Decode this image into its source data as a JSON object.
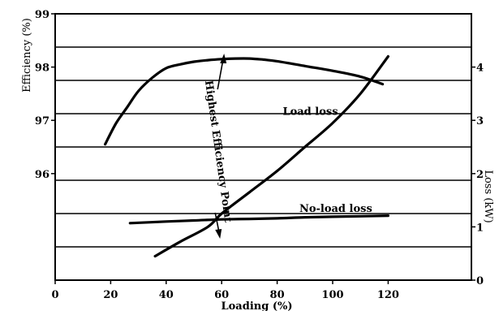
{
  "chart_data": {
    "type": "line",
    "xlabel": "Loading (%)",
    "ylabel_left": "Efficiency (%)",
    "ylabel_right": "Loss (kW)",
    "xlim": [
      0,
      150
    ],
    "x_ticks": [
      "0",
      "20",
      "40",
      "60",
      "80",
      "100",
      "120"
    ],
    "x_tick_values": [
      0,
      20,
      40,
      60,
      80,
      100,
      120
    ],
    "ylim_left": [
      94,
      99
    ],
    "left_ticks": [
      "96",
      "97",
      "98",
      "99"
    ],
    "left_tick_values": [
      96,
      97,
      98,
      99
    ],
    "ylim_right": [
      0,
      5
    ],
    "right_ticks": [
      "0",
      "1",
      "2",
      "3",
      "4"
    ],
    "right_tick_values": [
      0,
      1,
      2,
      3,
      4
    ],
    "gridlines": "horizontal",
    "grid_levels": [
      1,
      2,
      3,
      4,
      5,
      6,
      7
    ],
    "series": [
      {
        "axis": "left",
        "x": [
          18,
          22,
          26,
          30,
          35,
          40,
          45,
          50,
          55,
          60,
          65,
          70,
          75,
          80,
          90,
          100,
          110,
          118
        ],
        "y": [
          96.55,
          96.95,
          97.25,
          97.55,
          97.8,
          97.98,
          98.05,
          98.1,
          98.13,
          98.15,
          98.16,
          98.16,
          98.14,
          98.11,
          98.02,
          97.93,
          97.82,
          97.68
        ]
      },
      {
        "axis": "right",
        "x": [
          27,
          40,
          50,
          60,
          70,
          80,
          90,
          100,
          110,
          120
        ],
        "y": [
          1.07,
          1.1,
          1.12,
          1.14,
          1.15,
          1.16,
          1.18,
          1.19,
          1.2,
          1.21
        ]
      },
      {
        "axis": "right",
        "x": [
          36,
          45,
          55,
          60,
          70,
          80,
          90,
          100,
          110,
          120
        ],
        "y": [
          0.45,
          0.72,
          1.0,
          1.25,
          1.65,
          2.05,
          2.5,
          2.95,
          3.5,
          4.2
        ]
      }
    ],
    "annotations": [
      {
        "text": "Load loss",
        "x": 82,
        "y_right": 3.1
      },
      {
        "text": "No-load loss",
        "x": 88,
        "y_right": 1.28
      },
      {
        "text": "Highest Efficiency Point",
        "x": 60,
        "rotated": true
      }
    ]
  }
}
